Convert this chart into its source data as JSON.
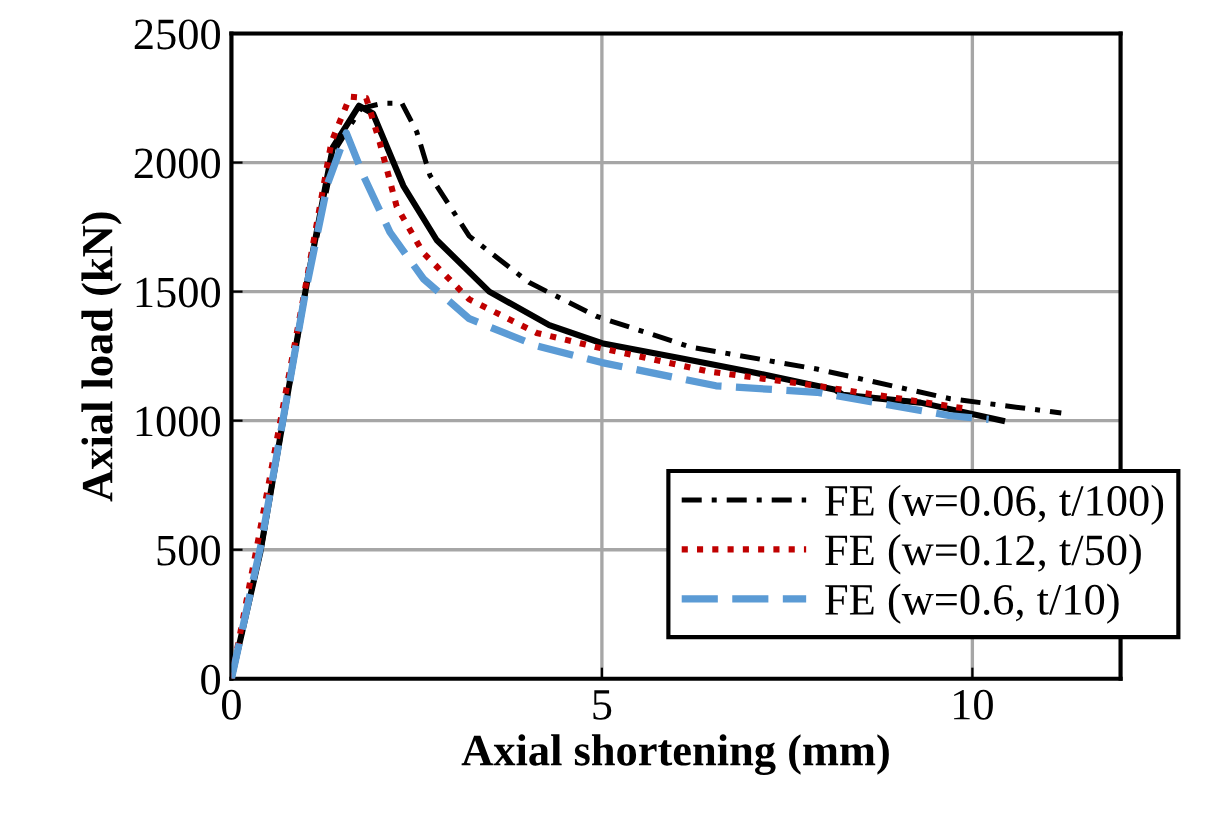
{
  "chart_data": {
    "type": "line",
    "xlabel": "Axial shortening (mm)",
    "ylabel": "Axial load (kN)",
    "xlim": [
      0,
      12
    ],
    "xticks": [
      0,
      5,
      10
    ],
    "ylim": [
      0,
      2500
    ],
    "yticks": [
      0,
      500,
      1000,
      1500,
      2000,
      2500
    ],
    "grid": true,
    "legend": "bottom right",
    "series": [
      {
        "color": "#000000",
        "line_style": "solid",
        "x": [
          0,
          0.39,
          1.01,
          1.37,
          1.72,
          1.91,
          2.32,
          2.77,
          3.48,
          4.29,
          5.0,
          6.1,
          7.0,
          8.15,
          8.25,
          9.3,
          10.4
        ],
        "values": [
          0,
          490,
          1520,
          2060,
          2220,
          2190,
          1910,
          1700,
          1500,
          1370,
          1300,
          1240,
          1190,
          1120,
          1100,
          1070,
          1000
        ]
      },
      {
        "name": "FE (w=0.06, t/100)",
        "color": "#000000",
        "line_style": "dashdot",
        "x": [
          0,
          0.4,
          1.0,
          1.4,
          1.75,
          2.05,
          2.3,
          2.5,
          2.68,
          3.21,
          4.02,
          4.92,
          6.2,
          7.9,
          9.7,
          11.2
        ],
        "values": [
          0,
          500,
          1500,
          2050,
          2210,
          2230,
          2230,
          2120,
          1950,
          1715,
          1535,
          1405,
          1285,
          1200,
          1085,
          1030
        ]
      },
      {
        "name": "FE (w=0.12, t/50)",
        "color": "#c00000",
        "line_style": "dotted",
        "x": [
          0,
          0.35,
          1.0,
          1.35,
          1.6,
          1.82,
          2.0,
          2.23,
          2.59,
          3.21,
          4.12,
          5.0,
          6.45,
          7.9,
          9.95
        ],
        "values": [
          0,
          520,
          1520,
          2080,
          2255,
          2250,
          2080,
          1830,
          1650,
          1470,
          1340,
          1280,
          1190,
          1135,
          1045
        ]
      },
      {
        "name": "FE (w=0.6, t/10)",
        "color": "#5b9bd5",
        "line_style": "dashed",
        "x": [
          0,
          0.4,
          1.0,
          1.3,
          1.55,
          1.78,
          2.14,
          2.59,
          3.21,
          4.12,
          5.0,
          6.54,
          7.9,
          9.68,
          10.22
        ],
        "values": [
          0,
          520,
          1500,
          1920,
          2115,
          1950,
          1730,
          1550,
          1395,
          1290,
          1225,
          1135,
          1110,
          1020,
          1005
        ]
      }
    ]
  }
}
